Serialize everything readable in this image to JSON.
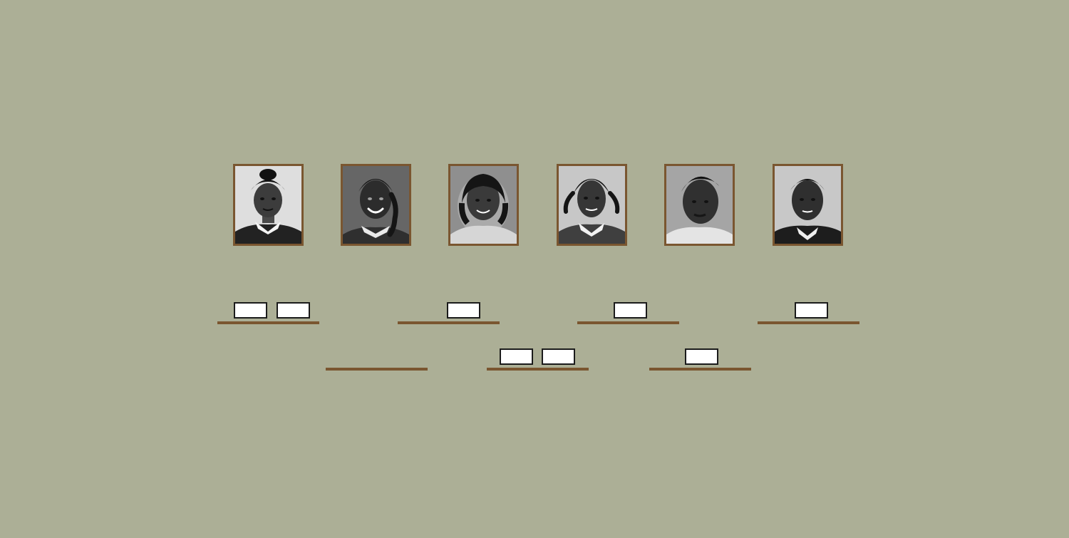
{
  "colors": {
    "background": "#acaf96",
    "frame": "#7a5630",
    "shelf": "#7a5630",
    "card_fill": "#ffffff",
    "card_border": "#1b1b1b"
  },
  "portraits": [
    {
      "id": "portrait-1",
      "icon": "portrait-photo-icon"
    },
    {
      "id": "portrait-2",
      "icon": "portrait-photo-icon"
    },
    {
      "id": "portrait-3",
      "icon": "portrait-photo-icon"
    },
    {
      "id": "portrait-4",
      "icon": "portrait-photo-icon"
    },
    {
      "id": "portrait-5",
      "icon": "portrait-photo-icon"
    },
    {
      "id": "portrait-6",
      "icon": "portrait-photo-icon"
    }
  ],
  "shelves": [
    {
      "id": "shelf-1",
      "card_count": 2
    },
    {
      "id": "shelf-2",
      "card_count": 1
    },
    {
      "id": "shelf-3",
      "card_count": 1
    },
    {
      "id": "shelf-4",
      "card_count": 1
    },
    {
      "id": "shelf-5",
      "card_count": 0
    },
    {
      "id": "shelf-6",
      "card_count": 2
    },
    {
      "id": "shelf-7",
      "card_count": 1
    }
  ]
}
